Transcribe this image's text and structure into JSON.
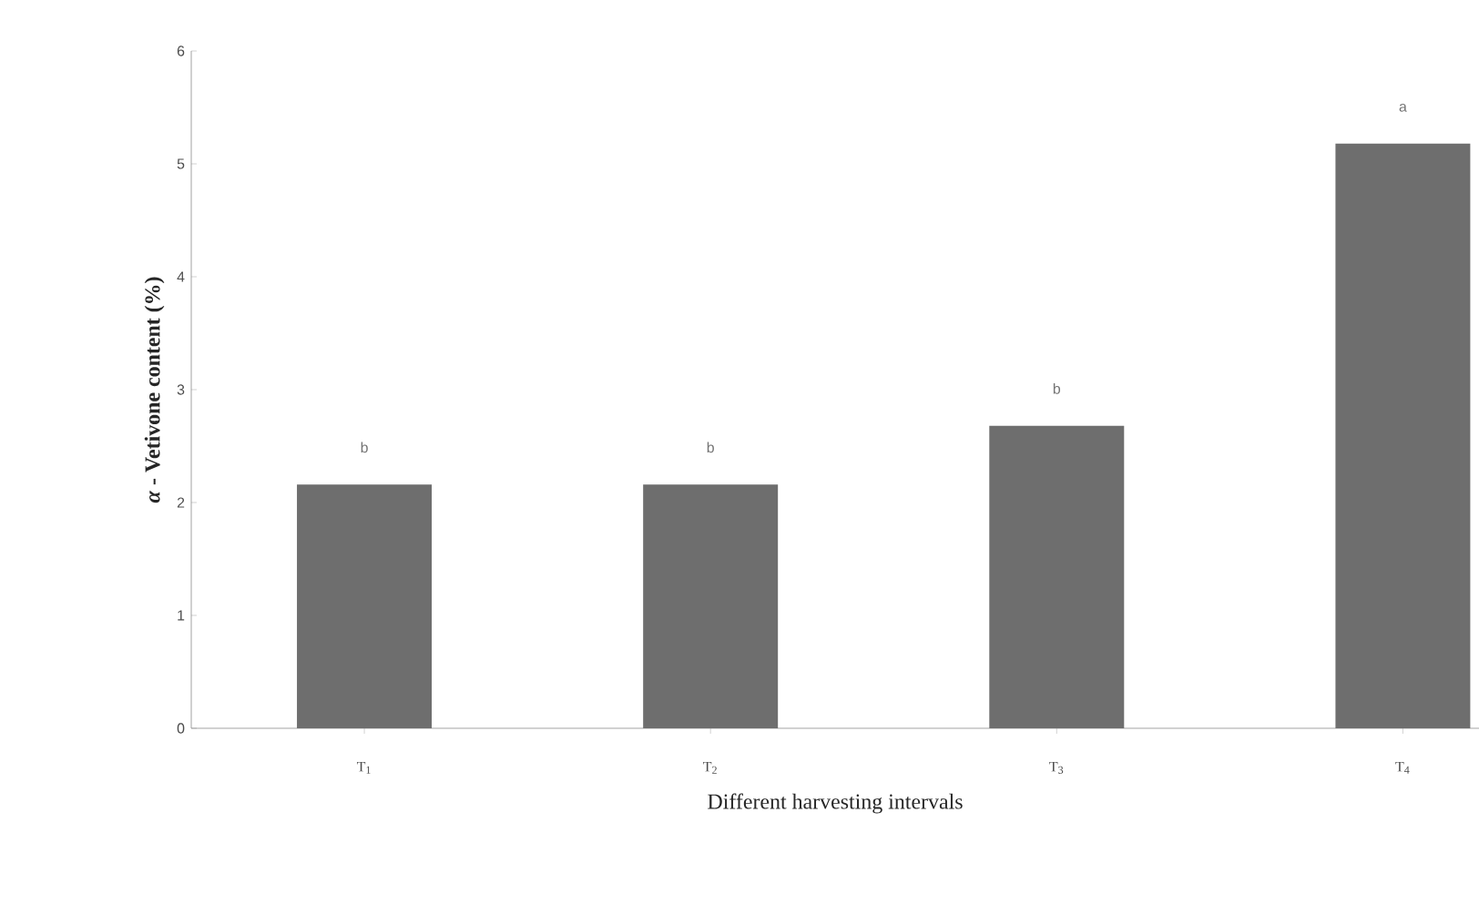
{
  "chart_data": {
    "type": "bar",
    "xlabel": "Different harvesting intervals",
    "ylabel": "*α* - Vetivone content (%)",
    "categories": [
      "T$_{1}$",
      "T$_{2}$",
      "T$_{3}$",
      "T$_{4}$"
    ],
    "values": [
      2.16,
      2.16,
      2.68,
      5.18
    ],
    "color": "#6e6e6e",
    "ylim": [
      0,
      6
    ],
    "yticks": [
      0,
      1,
      2,
      3,
      4,
      5,
      6
    ],
    "annotations": [
      {
        "text": "b",
        "x": "T$_{1}$",
        "y": 2.16
      },
      {
        "text": "b",
        "x": "T$_{2}$",
        "y": 2.16
      },
      {
        "text": "b",
        "x": "T$_{3}$",
        "y": 2.68
      },
      {
        "text": "a",
        "x": "T$_{4}$",
        "y": 5.18
      }
    ]
  }
}
